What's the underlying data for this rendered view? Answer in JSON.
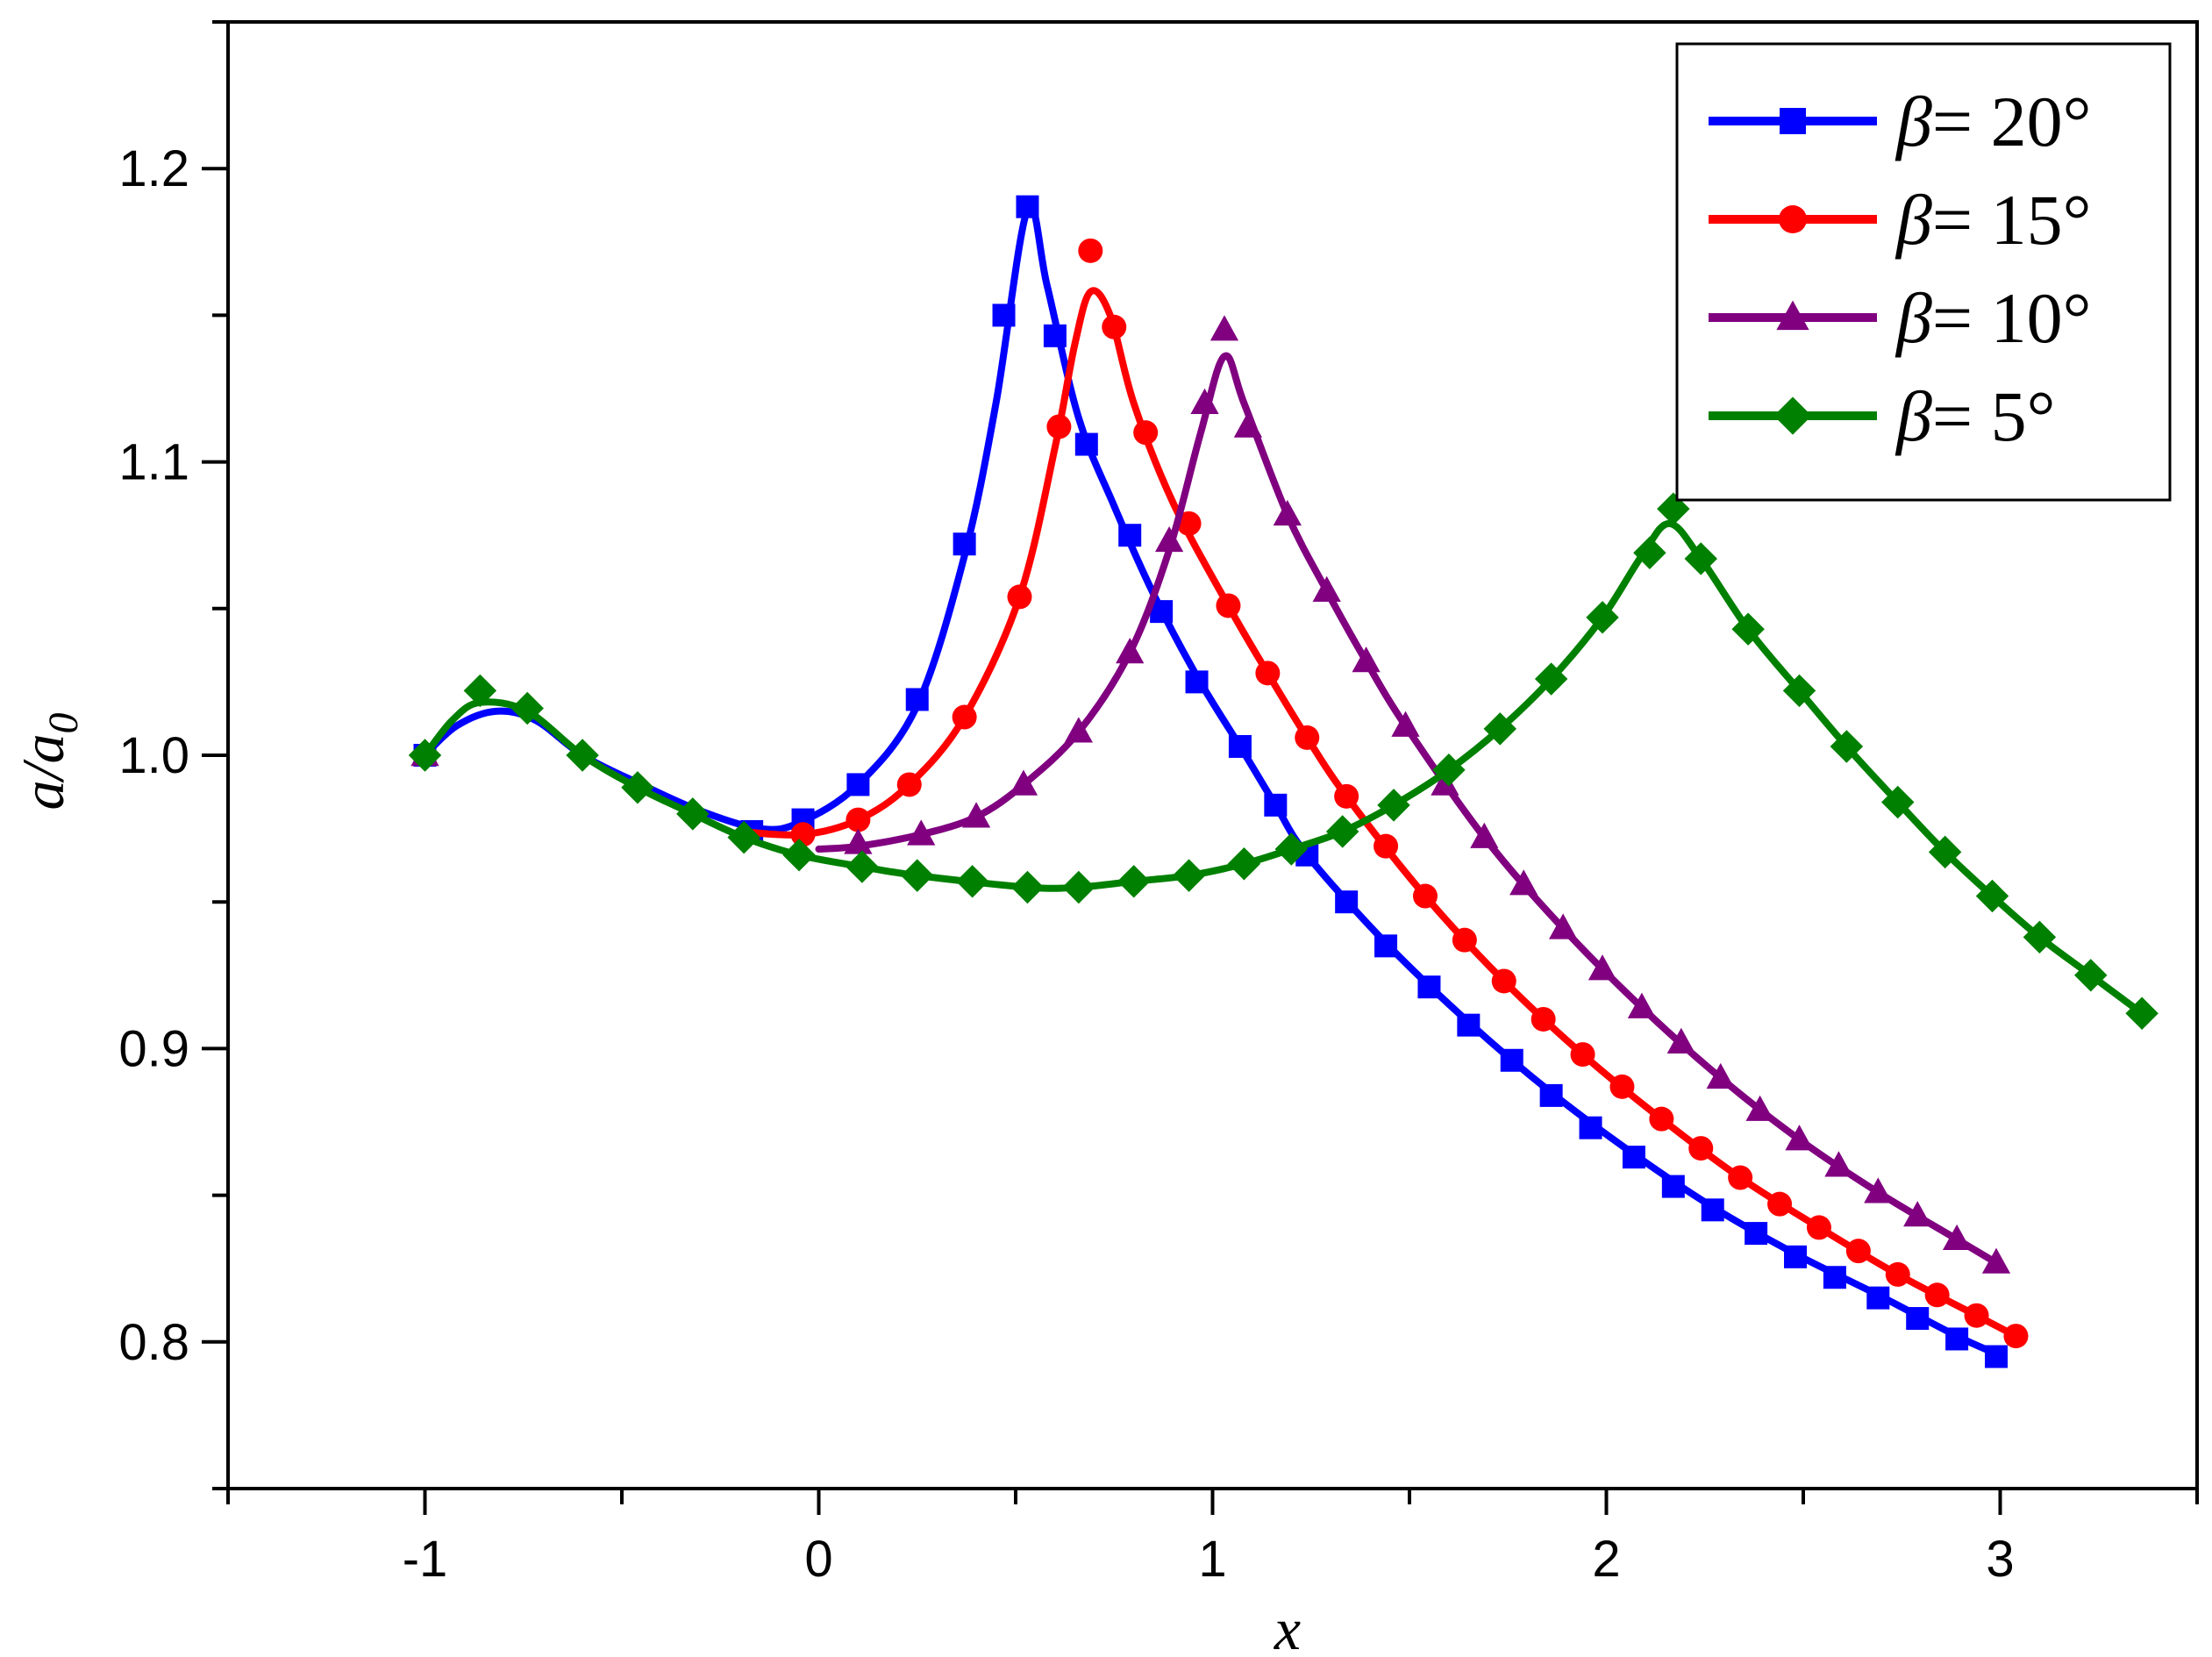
{
  "chart_data": {
    "type": "line",
    "title": "",
    "xlabel": "x",
    "ylabel_main": "a/a",
    "ylabel_sub": "0",
    "xlim": [
      -1.5,
      3.5
    ],
    "ylim": [
      0.75,
      1.25
    ],
    "x_ticks": [
      -1,
      0,
      1,
      2,
      3
    ],
    "x_tick_labels": [
      "-1",
      "0",
      "1",
      "2",
      "3"
    ],
    "y_ticks": [
      0.8,
      0.9,
      1.0,
      1.1,
      1.2
    ],
    "y_tick_labels": [
      "0.8",
      "0.9",
      "1.0",
      "1.1",
      "1.2"
    ],
    "grid": false,
    "legend_position": "top-right",
    "series": [
      {
        "name_symbol": "β",
        "name_rest": "= 20°",
        "color": "#0000ff",
        "marker": "square",
        "markers": [
          [
            -1.0,
            1.0
          ],
          [
            -0.17,
            0.974
          ],
          [
            -0.04,
            0.978
          ],
          [
            0.1,
            0.99
          ],
          [
            0.25,
            1.019
          ],
          [
            0.37,
            1.072
          ],
          [
            0.47,
            1.15
          ],
          [
            0.53,
            1.187
          ],
          [
            0.6,
            1.143
          ],
          [
            0.68,
            1.106
          ],
          [
            0.79,
            1.075
          ],
          [
            0.87,
            1.049
          ],
          [
            0.96,
            1.025
          ],
          [
            1.07,
            1.003
          ],
          [
            1.16,
            0.983
          ],
          [
            1.24,
            0.966
          ],
          [
            1.34,
            0.95
          ],
          [
            1.44,
            0.935
          ],
          [
            1.55,
            0.921
          ],
          [
            1.65,
            0.908
          ],
          [
            1.76,
            0.896
          ],
          [
            1.86,
            0.884
          ],
          [
            1.96,
            0.873
          ],
          [
            2.07,
            0.863
          ],
          [
            2.17,
            0.853
          ],
          [
            2.27,
            0.845
          ],
          [
            2.38,
            0.837
          ],
          [
            2.48,
            0.829
          ],
          [
            2.58,
            0.822
          ],
          [
            2.69,
            0.815
          ],
          [
            2.79,
            0.808
          ],
          [
            2.89,
            0.801
          ],
          [
            2.99,
            0.795
          ]
        ],
        "curve": [
          [
            -1.0,
            1.0
          ],
          [
            -0.92,
            1.01
          ],
          [
            -0.82,
            1.015
          ],
          [
            -0.72,
            1.012
          ],
          [
            -0.6,
            1.0
          ],
          [
            -0.45,
            0.99
          ],
          [
            -0.3,
            0.981
          ],
          [
            -0.15,
            0.975
          ],
          [
            -0.05,
            0.977
          ],
          [
            0.1,
            0.99
          ],
          [
            0.25,
            1.017
          ],
          [
            0.37,
            1.068
          ],
          [
            0.45,
            1.12
          ],
          [
            0.53,
            1.186
          ],
          [
            0.58,
            1.16
          ],
          [
            0.66,
            1.115
          ],
          [
            0.75,
            1.085
          ],
          [
            0.85,
            1.055
          ],
          [
            0.96,
            1.027
          ],
          [
            1.07,
            1.003
          ],
          [
            1.16,
            0.983
          ],
          [
            1.24,
            0.966
          ],
          [
            1.44,
            0.936
          ],
          [
            1.65,
            0.909
          ],
          [
            1.86,
            0.885
          ],
          [
            2.07,
            0.864
          ],
          [
            2.27,
            0.846
          ],
          [
            2.48,
            0.83
          ],
          [
            2.69,
            0.816
          ],
          [
            2.89,
            0.802
          ],
          [
            2.99,
            0.796
          ]
        ]
      },
      {
        "name_symbol": "β",
        "name_rest": "= 15°",
        "color": "#ff0000",
        "marker": "circle",
        "markers": [
          [
            -0.04,
            0.973
          ],
          [
            0.1,
            0.978
          ],
          [
            0.23,
            0.99
          ],
          [
            0.37,
            1.013
          ],
          [
            0.51,
            1.054
          ],
          [
            0.61,
            1.112
          ],
          [
            0.69,
            1.172
          ],
          [
            0.75,
            1.146
          ],
          [
            0.83,
            1.11
          ],
          [
            0.94,
            1.079
          ],
          [
            1.04,
            1.051
          ],
          [
            1.14,
            1.028
          ],
          [
            1.24,
            1.006
          ],
          [
            1.34,
            0.986
          ],
          [
            1.44,
            0.969
          ],
          [
            1.54,
            0.952
          ],
          [
            1.64,
            0.937
          ],
          [
            1.74,
            0.923
          ],
          [
            1.84,
            0.91
          ],
          [
            1.94,
            0.898
          ],
          [
            2.04,
            0.887
          ],
          [
            2.14,
            0.876
          ],
          [
            2.24,
            0.866
          ],
          [
            2.34,
            0.856
          ],
          [
            2.44,
            0.847
          ],
          [
            2.54,
            0.839
          ],
          [
            2.64,
            0.831
          ],
          [
            2.74,
            0.823
          ],
          [
            2.84,
            0.816
          ],
          [
            2.94,
            0.809
          ],
          [
            3.04,
            0.802
          ]
        ],
        "curve": [
          [
            -0.2,
            0.974
          ],
          [
            -0.04,
            0.973
          ],
          [
            0.1,
            0.978
          ],
          [
            0.23,
            0.99
          ],
          [
            0.37,
            1.013
          ],
          [
            0.51,
            1.054
          ],
          [
            0.6,
            1.105
          ],
          [
            0.65,
            1.14
          ],
          [
            0.69,
            1.158
          ],
          [
            0.74,
            1.15
          ],
          [
            0.8,
            1.12
          ],
          [
            0.9,
            1.086
          ],
          [
            1.04,
            1.051
          ],
          [
            1.14,
            1.028
          ],
          [
            1.24,
            1.006
          ],
          [
            1.34,
            0.986
          ],
          [
            1.54,
            0.952
          ],
          [
            1.74,
            0.923
          ],
          [
            1.94,
            0.898
          ],
          [
            2.14,
            0.876
          ],
          [
            2.34,
            0.856
          ],
          [
            2.54,
            0.839
          ],
          [
            2.74,
            0.823
          ],
          [
            2.94,
            0.809
          ],
          [
            3.04,
            0.802
          ]
        ]
      },
      {
        "name_symbol": "β",
        "name_rest": "= 10°",
        "color": "#800080",
        "marker": "triangle",
        "markers": [
          [
            -1.0,
            1.0
          ],
          [
            0.1,
            0.97
          ],
          [
            0.26,
            0.973
          ],
          [
            0.4,
            0.979
          ],
          [
            0.52,
            0.99
          ],
          [
            0.66,
            1.008
          ],
          [
            0.79,
            1.035
          ],
          [
            0.89,
            1.073
          ],
          [
            0.98,
            1.12
          ],
          [
            1.03,
            1.145
          ],
          [
            1.09,
            1.112
          ],
          [
            1.19,
            1.082
          ],
          [
            1.29,
            1.056
          ],
          [
            1.39,
            1.032
          ],
          [
            1.49,
            1.01
          ],
          [
            1.59,
            0.99
          ],
          [
            1.69,
            0.972
          ],
          [
            1.79,
            0.956
          ],
          [
            1.89,
            0.941
          ],
          [
            1.99,
            0.927
          ],
          [
            2.09,
            0.914
          ],
          [
            2.19,
            0.902
          ],
          [
            2.29,
            0.89
          ],
          [
            2.39,
            0.879
          ],
          [
            2.49,
            0.869
          ],
          [
            2.59,
            0.86
          ],
          [
            2.69,
            0.851
          ],
          [
            2.79,
            0.843
          ],
          [
            2.89,
            0.835
          ],
          [
            2.99,
            0.827
          ]
        ],
        "curve": [
          [
            0.0,
            0.968
          ],
          [
            0.1,
            0.969
          ],
          [
            0.26,
            0.973
          ],
          [
            0.4,
            0.979
          ],
          [
            0.52,
            0.99
          ],
          [
            0.66,
            1.008
          ],
          [
            0.79,
            1.035
          ],
          [
            0.89,
            1.07
          ],
          [
            0.97,
            1.11
          ],
          [
            1.03,
            1.136
          ],
          [
            1.08,
            1.12
          ],
          [
            1.19,
            1.082
          ],
          [
            1.29,
            1.056
          ],
          [
            1.39,
            1.032
          ],
          [
            1.49,
            1.01
          ],
          [
            1.69,
            0.972
          ],
          [
            1.89,
            0.941
          ],
          [
            2.09,
            0.914
          ],
          [
            2.29,
            0.89
          ],
          [
            2.49,
            0.869
          ],
          [
            2.69,
            0.851
          ],
          [
            2.89,
            0.835
          ],
          [
            2.99,
            0.827
          ]
        ]
      },
      {
        "name_symbol": "β",
        "name_rest": "= 5°",
        "color": "#008000",
        "marker": "diamond",
        "markers": [
          [
            -1.0,
            1.0
          ],
          [
            -0.86,
            1.022
          ],
          [
            -0.74,
            1.016
          ],
          [
            -0.6,
            1.0
          ],
          [
            -0.46,
            0.989
          ],
          [
            -0.32,
            0.98
          ],
          [
            -0.19,
            0.972
          ],
          [
            -0.05,
            0.966
          ],
          [
            0.11,
            0.962
          ],
          [
            0.25,
            0.959
          ],
          [
            0.39,
            0.957
          ],
          [
            0.53,
            0.955
          ],
          [
            0.66,
            0.955
          ],
          [
            0.8,
            0.957
          ],
          [
            0.94,
            0.959
          ],
          [
            1.08,
            0.963
          ],
          [
            1.2,
            0.968
          ],
          [
            1.33,
            0.974
          ],
          [
            1.46,
            0.983
          ],
          [
            1.6,
            0.995
          ],
          [
            1.73,
            1.009
          ],
          [
            1.86,
            1.026
          ],
          [
            1.99,
            1.047
          ],
          [
            2.11,
            1.069
          ],
          [
            2.17,
            1.084
          ],
          [
            2.24,
            1.067
          ],
          [
            2.36,
            1.043
          ],
          [
            2.49,
            1.022
          ],
          [
            2.61,
            1.003
          ],
          [
            2.74,
            0.984
          ],
          [
            2.86,
            0.967
          ],
          [
            2.98,
            0.952
          ],
          [
            3.1,
            0.938
          ],
          [
            3.23,
            0.925
          ],
          [
            3.36,
            0.912
          ]
        ],
        "curve": [
          [
            -1.0,
            1.0
          ],
          [
            -0.93,
            1.012
          ],
          [
            -0.86,
            1.018
          ],
          [
            -0.74,
            1.015
          ],
          [
            -0.6,
            1.0
          ],
          [
            -0.46,
            0.989
          ],
          [
            -0.32,
            0.98
          ],
          [
            -0.19,
            0.972
          ],
          [
            -0.05,
            0.966
          ],
          [
            0.11,
            0.962
          ],
          [
            0.25,
            0.959
          ],
          [
            0.53,
            0.955
          ],
          [
            0.66,
            0.955
          ],
          [
            0.8,
            0.957
          ],
          [
            0.94,
            0.959
          ],
          [
            1.08,
            0.963
          ],
          [
            1.2,
            0.968
          ],
          [
            1.33,
            0.974
          ],
          [
            1.46,
            0.983
          ],
          [
            1.6,
            0.995
          ],
          [
            1.73,
            1.009
          ],
          [
            1.86,
            1.026
          ],
          [
            1.99,
            1.047
          ],
          [
            2.09,
            1.068
          ],
          [
            2.16,
            1.079
          ],
          [
            2.24,
            1.067
          ],
          [
            2.36,
            1.043
          ],
          [
            2.49,
            1.022
          ],
          [
            2.61,
            1.003
          ],
          [
            2.74,
            0.984
          ],
          [
            2.86,
            0.967
          ],
          [
            2.98,
            0.952
          ],
          [
            3.1,
            0.938
          ],
          [
            3.23,
            0.925
          ],
          [
            3.36,
            0.912
          ]
        ]
      }
    ]
  }
}
